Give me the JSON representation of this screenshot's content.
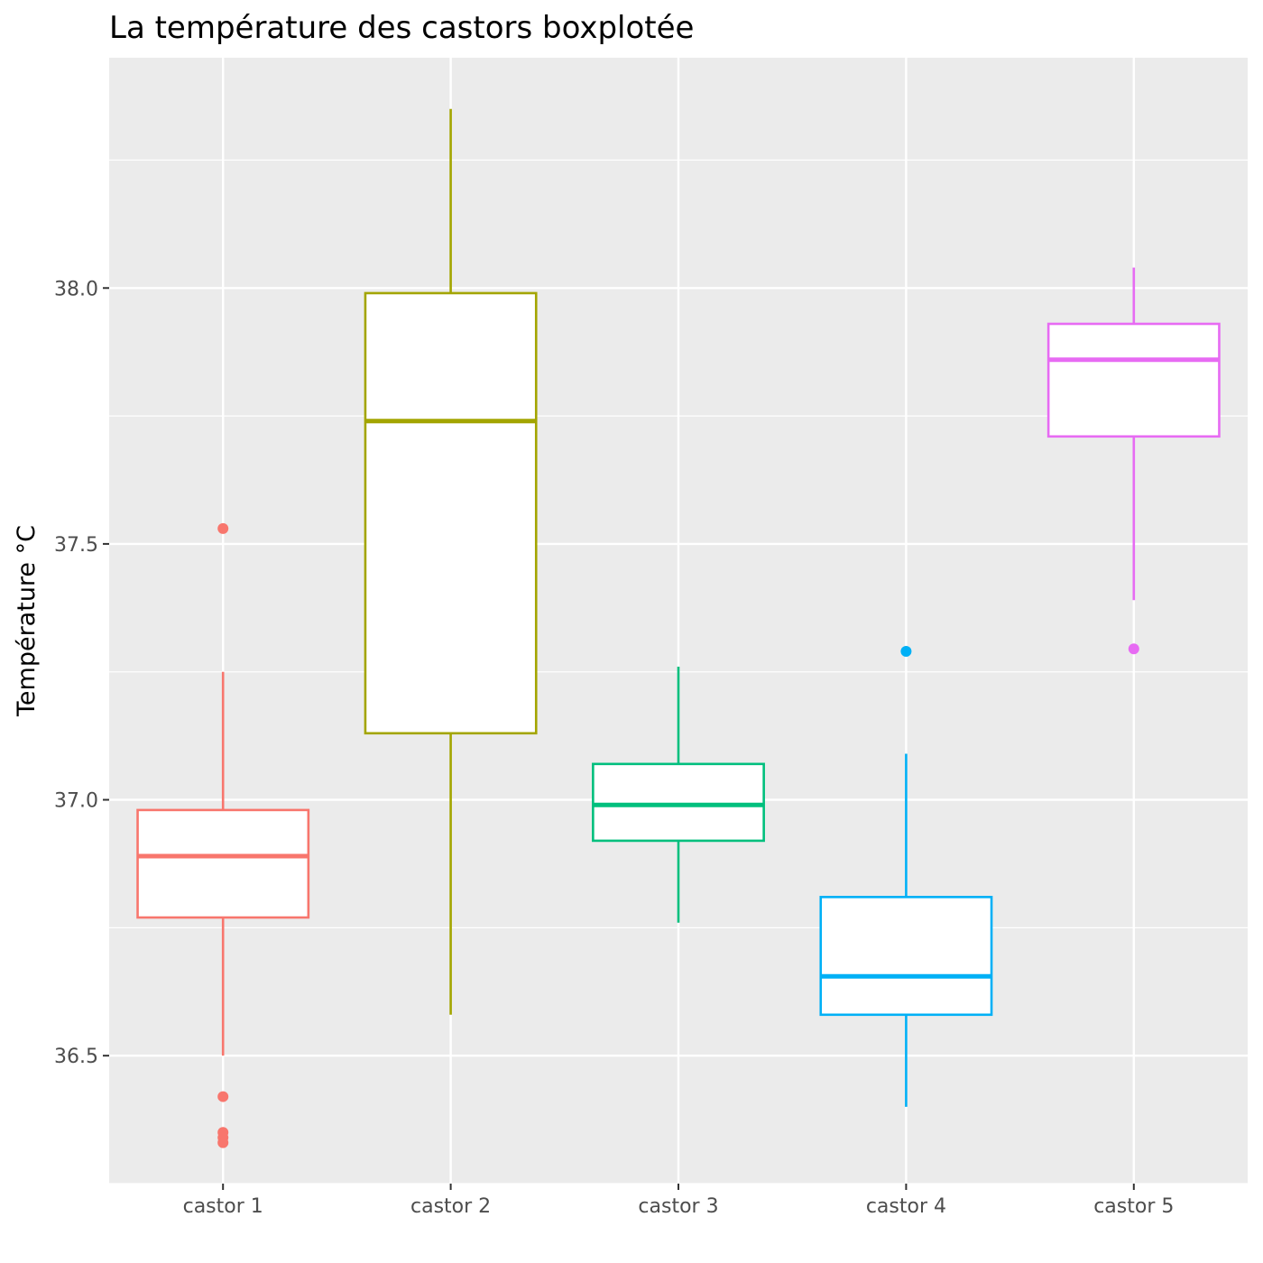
{
  "chart_data": {
    "type": "boxplot",
    "title": "La température des castors boxplotée",
    "xlabel": "",
    "ylabel": "Température °C",
    "ylim": [
      36.25,
      38.45
    ],
    "yticks": [
      "36.5",
      "37.0",
      "37.5",
      "38.0"
    ],
    "ytick_values": [
      36.5,
      37.0,
      37.5,
      38.0
    ],
    "grid": true,
    "legend": "none",
    "categories": [
      "castor 1",
      "castor 2",
      "castor 3",
      "castor 4",
      "castor 5"
    ],
    "boxes": [
      {
        "category": "castor 1",
        "color": "#F8766D",
        "whisker_low": 36.5,
        "q1": 36.77,
        "median": 36.89,
        "q3": 36.98,
        "whisker_high": 37.25,
        "outliers": [
          37.53,
          36.42,
          36.35,
          36.34,
          36.33
        ]
      },
      {
        "category": "castor 2",
        "color": "#A3A500",
        "whisker_low": 36.58,
        "q1": 37.13,
        "median": 37.74,
        "q3": 37.99,
        "whisker_high": 38.35,
        "outliers": []
      },
      {
        "category": "castor 3",
        "color": "#00BF7D",
        "whisker_low": 36.76,
        "q1": 36.92,
        "median": 36.99,
        "q3": 37.07,
        "whisker_high": 37.26,
        "outliers": []
      },
      {
        "category": "castor 4",
        "color": "#00B0F6",
        "whisker_low": 36.4,
        "q1": 36.58,
        "median": 36.655,
        "q3": 36.81,
        "whisker_high": 37.09,
        "outliers": [
          37.29
        ]
      },
      {
        "category": "castor 5",
        "color": "#E76BF3",
        "whisker_low": 37.39,
        "q1": 37.71,
        "median": 37.86,
        "q3": 37.93,
        "whisker_high": 38.04,
        "outliers": [
          37.295
        ]
      }
    ]
  }
}
